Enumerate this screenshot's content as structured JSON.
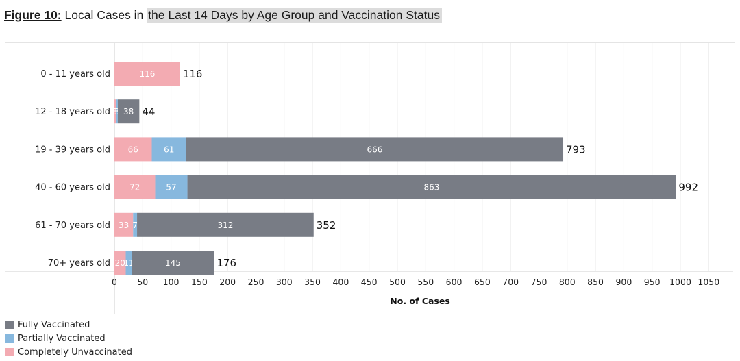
{
  "figure": {
    "label": "Figure 10:",
    "title_plain": "Local Cases in ",
    "title_highlight": "the Last 14 Days by Age Group and Vaccination Status"
  },
  "colors": {
    "fully": "#787c85",
    "partially": "#87b8de",
    "unvaccinated": "#f3abb2",
    "grid": "#ececec",
    "axis": "#cfcfcf"
  },
  "chart_data": {
    "type": "bar",
    "orientation": "horizontal",
    "stacked": true,
    "xlabel": "No. of Cases",
    "xlim": [
      0,
      1050
    ],
    "xticks": [
      0,
      50,
      100,
      150,
      200,
      250,
      300,
      350,
      400,
      450,
      500,
      550,
      600,
      650,
      700,
      750,
      800,
      850,
      900,
      950,
      1000,
      1050
    ],
    "grid": true,
    "legend_position": "bottom-left",
    "categories": [
      "0 - 11 years old",
      "12 - 18 years old",
      "19 - 39 years old",
      "40 - 60 years old",
      "61 - 70 years old",
      "70+ years old"
    ],
    "series": [
      {
        "name": "Completely Unvaccinated",
        "color_key": "unvaccinated",
        "values": [
          116,
          3,
          66,
          72,
          33,
          20
        ]
      },
      {
        "name": "Partially Vaccinated",
        "color_key": "partially",
        "values": [
          0,
          3,
          61,
          57,
          7,
          11
        ]
      },
      {
        "name": "Fully Vaccinated",
        "color_key": "fully",
        "values": [
          0,
          38,
          666,
          863,
          312,
          145
        ]
      }
    ],
    "totals": [
      116,
      44,
      793,
      992,
      352,
      176
    ]
  },
  "legend": [
    {
      "label": "Fully Vaccinated",
      "color_key": "fully"
    },
    {
      "label": "Partially Vaccinated",
      "color_key": "partially"
    },
    {
      "label": "Completely Unvaccinated",
      "color_key": "unvaccinated"
    }
  ]
}
